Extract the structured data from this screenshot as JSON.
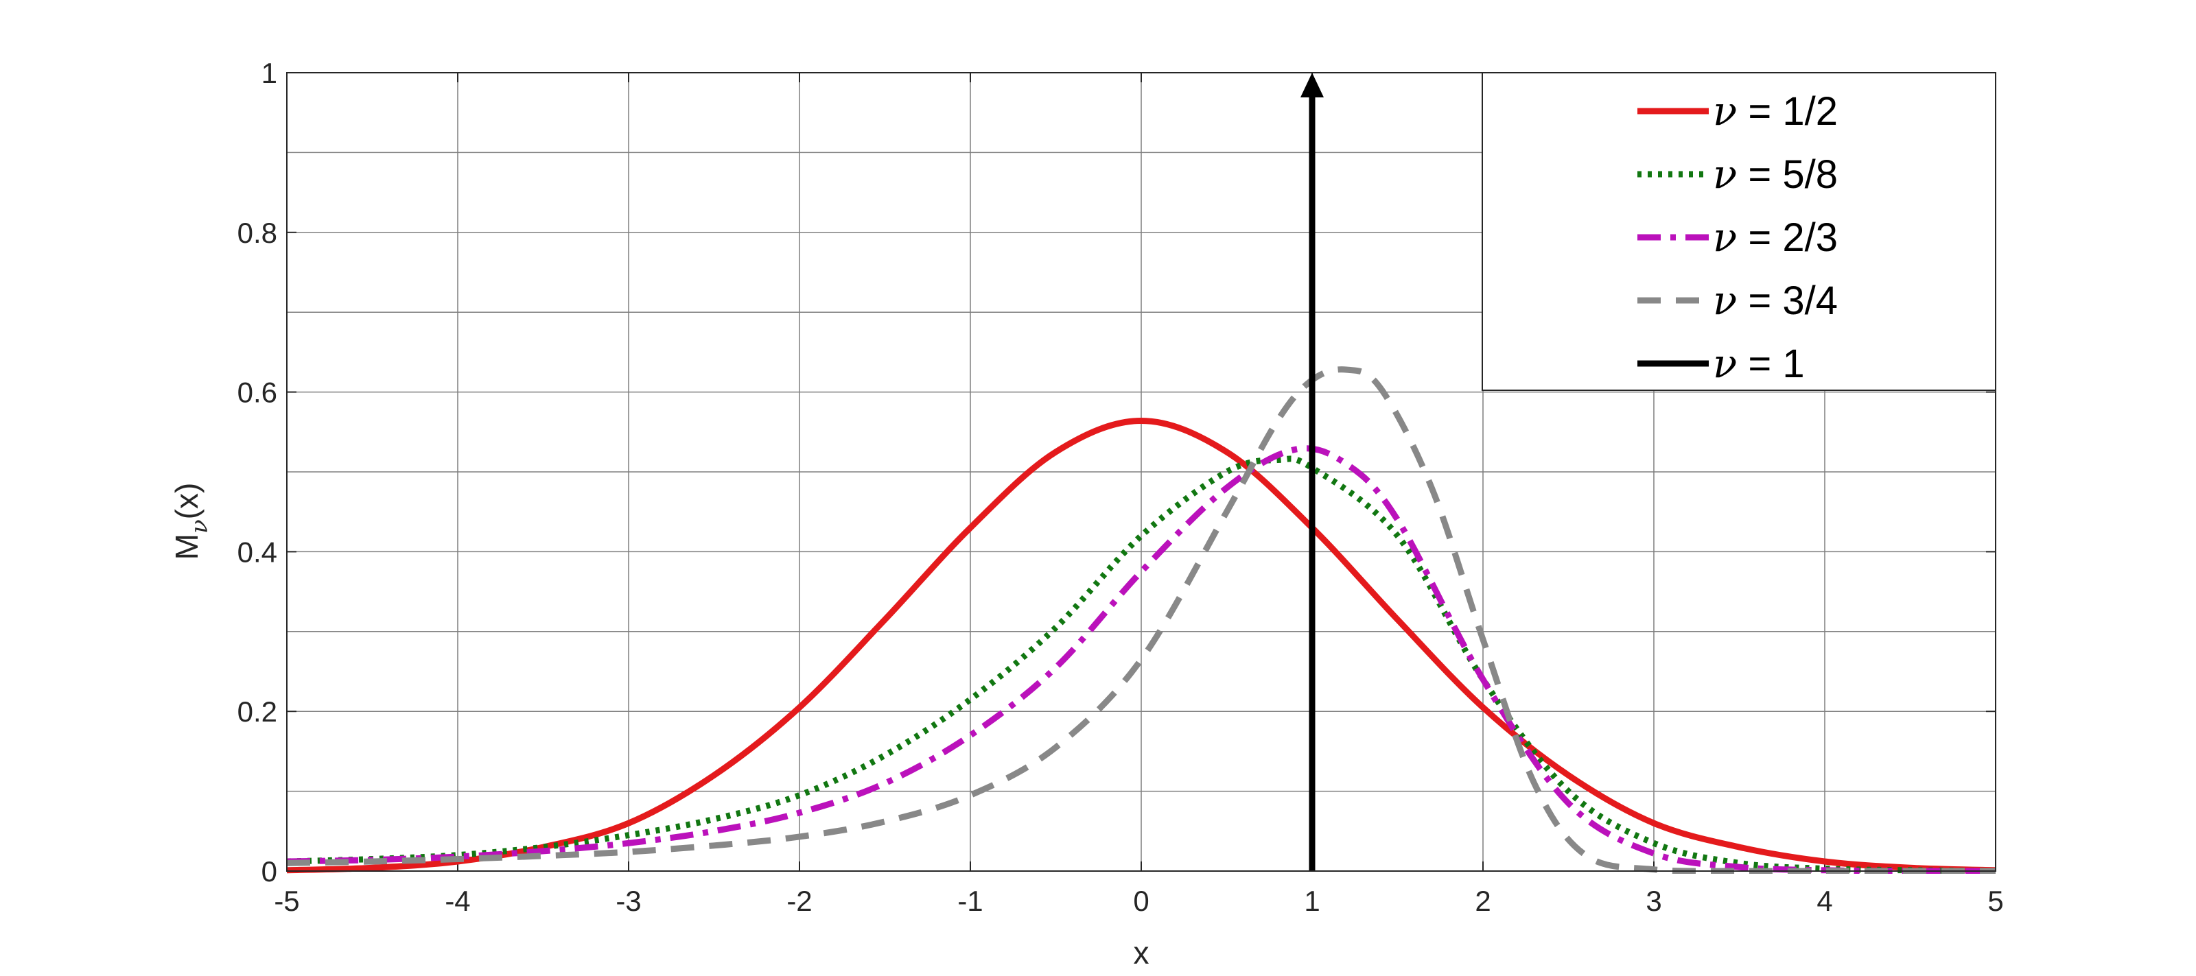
{
  "chart_data": {
    "type": "line",
    "xlabel": "x",
    "ylabel_main": "M",
    "ylabel_sub": "ν",
    "ylabel_arg": "(x)",
    "xlim": [
      -5,
      5
    ],
    "ylim": [
      0,
      1
    ],
    "x_ticks": [
      -5,
      -4,
      -3,
      -2,
      -1,
      0,
      1,
      2,
      3,
      4,
      5
    ],
    "x_tick_labels": [
      "-5",
      "-4",
      "-3",
      "-2",
      "-1",
      "0",
      "1",
      "2",
      "3",
      "4",
      "5"
    ],
    "y_ticks": [
      0,
      0.2,
      0.4,
      0.6,
      0.8,
      1
    ],
    "y_tick_labels": [
      "0",
      "0.2",
      "0.4",
      "0.6",
      "0.8",
      "1"
    ],
    "grid": true,
    "minor_grid_y": [
      0.1,
      0.3,
      0.5,
      0.7,
      0.9
    ],
    "legend_position": "top-right",
    "legend_symbol": "ν",
    "series": [
      {
        "name": "ν = 1/2",
        "legend_value": " = 1/2",
        "color": "#e41a1c",
        "style": "solid",
        "x": [
          -5,
          -4.5,
          -4,
          -3.5,
          -3,
          -2.5,
          -2,
          -1.5,
          -1,
          -0.5,
          0,
          0.5,
          1,
          1.5,
          2,
          2.5,
          3,
          3.5,
          4,
          4.5,
          5
        ],
        "y": [
          0.001,
          0.004,
          0.012,
          0.03,
          0.06,
          0.12,
          0.205,
          0.315,
          0.43,
          0.525,
          0.564,
          0.525,
          0.43,
          0.315,
          0.205,
          0.12,
          0.06,
          0.03,
          0.012,
          0.004,
          0.001
        ]
      },
      {
        "name": "ν = 5/8",
        "legend_value": " = 5/8",
        "color": "#117711",
        "style": "dotted",
        "x": [
          -5,
          -4.5,
          -4,
          -3.5,
          -3,
          -2.5,
          -2,
          -1.5,
          -1,
          -0.5,
          0,
          0.5,
          0.8,
          1,
          1.5,
          2,
          2.5,
          3,
          3.5,
          4,
          4.5,
          5
        ],
        "y": [
          0.012,
          0.015,
          0.02,
          0.03,
          0.045,
          0.065,
          0.095,
          0.145,
          0.215,
          0.305,
          0.42,
          0.5,
          0.515,
          0.505,
          0.42,
          0.24,
          0.1,
          0.035,
          0.01,
          0.003,
          0.001,
          0.0
        ]
      },
      {
        "name": "ν = 2/3",
        "legend_value": " = 2/3",
        "color": "#bb11bb",
        "style": "dashdot",
        "x": [
          -5,
          -4.5,
          -4,
          -3.5,
          -3,
          -2.5,
          -2,
          -1.5,
          -1,
          -0.5,
          0,
          0.5,
          0.9,
          1.2,
          1.5,
          2,
          2.5,
          3,
          3.5,
          4,
          4.5,
          5
        ],
        "y": [
          0.012,
          0.014,
          0.018,
          0.025,
          0.035,
          0.05,
          0.073,
          0.11,
          0.17,
          0.255,
          0.375,
          0.48,
          0.528,
          0.51,
          0.44,
          0.24,
          0.085,
          0.022,
          0.005,
          0.001,
          0.0,
          0.0
        ]
      },
      {
        "name": "ν = 3/4",
        "legend_value": " = 3/4",
        "color": "#888888",
        "style": "dashed",
        "x": [
          -5,
          -4.5,
          -4,
          -3.5,
          -3,
          -2.5,
          -2,
          -1.5,
          -1,
          -0.5,
          0,
          0.5,
          0.8,
          1,
          1.2,
          1.4,
          1.7,
          2,
          2.3,
          2.6,
          3,
          3.5,
          4,
          5
        ],
        "y": [
          0.01,
          0.012,
          0.015,
          0.019,
          0.024,
          0.032,
          0.043,
          0.062,
          0.095,
          0.155,
          0.265,
          0.45,
          0.565,
          0.615,
          0.628,
          0.605,
          0.48,
          0.29,
          0.11,
          0.02,
          0.002,
          0.0,
          0.0,
          0.0
        ]
      },
      {
        "name": "ν = 1",
        "legend_value": " = 1",
        "color": "#000000",
        "style": "solid",
        "annotation": "delta spike at x = 1 (arrow)",
        "x": [
          1,
          1
        ],
        "y": [
          0,
          1
        ]
      }
    ]
  }
}
